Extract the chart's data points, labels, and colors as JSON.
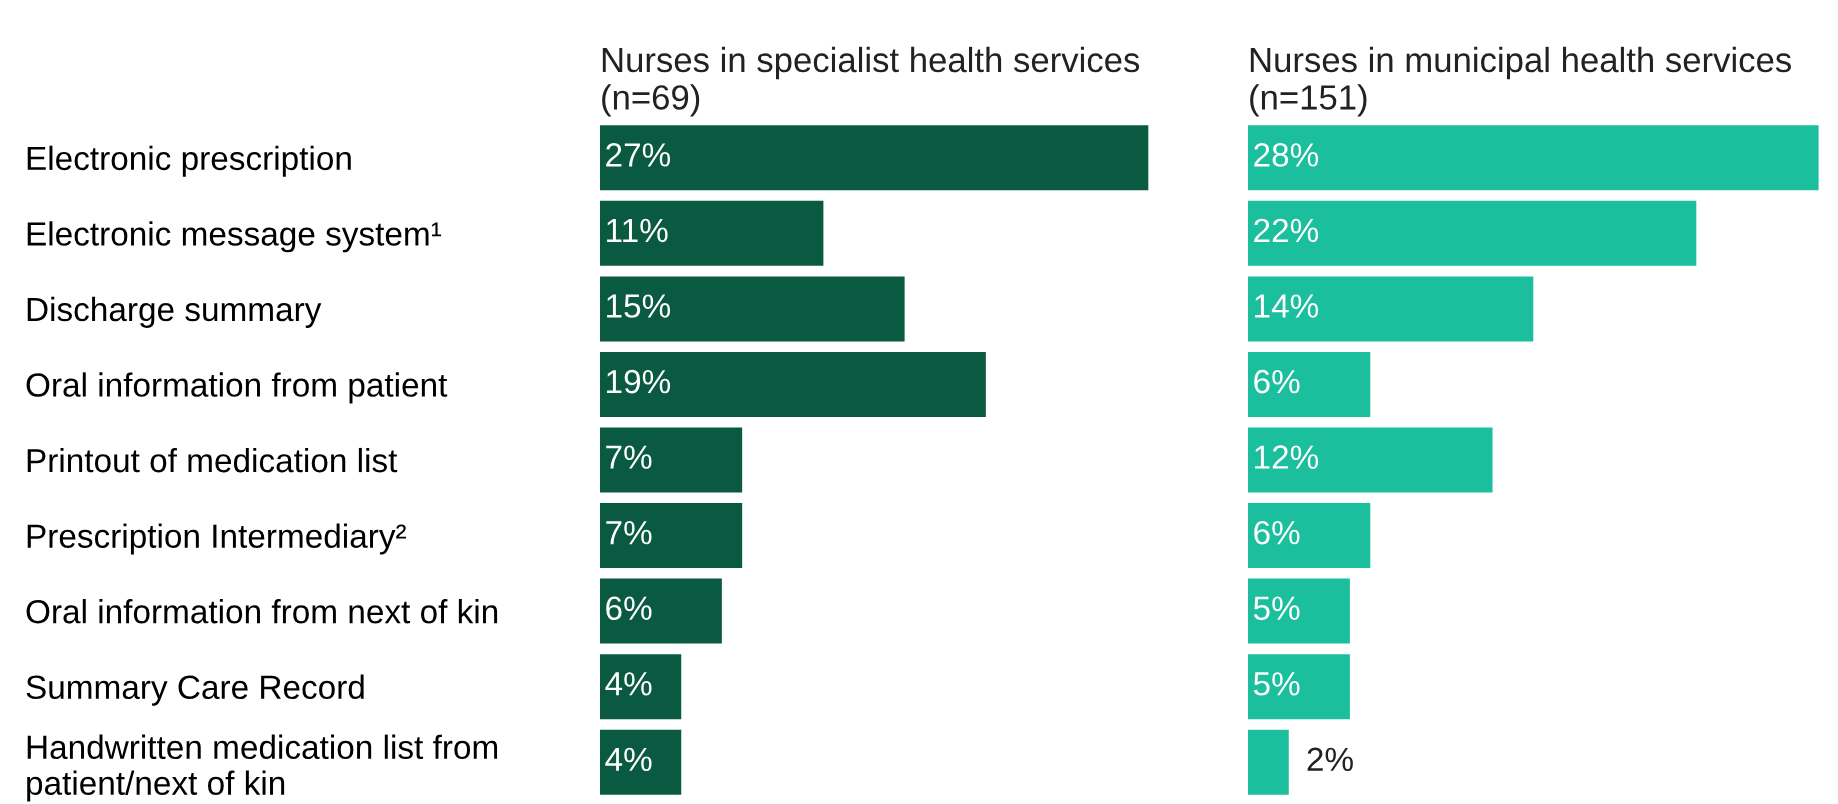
{
  "chart_data": [
    {
      "type": "bar",
      "orientation": "horizontal",
      "title": "Nurses in specialist health services\n(n=69)",
      "categories": [
        "Electronic prescription",
        "Electronic message system¹",
        "Discharge summary",
        "Oral information from patient",
        "Printout of medication list",
        "Prescription Intermediary²",
        "Oral information from next of kin",
        "Summary Care Record",
        "Handwritten medication list from\npatient/next of kin"
      ],
      "values": [
        27,
        11,
        15,
        19,
        7,
        7,
        6,
        4,
        4
      ],
      "value_labels": [
        "27%",
        "11%",
        "15%",
        "19%",
        "7%",
        "7%",
        "6%",
        "4%",
        "4%"
      ],
      "color": "#0a5a42",
      "tick_labels": "y"
    },
    {
      "type": "bar",
      "orientation": "horizontal",
      "title": "Nurses in municipal health services\n(n=151)",
      "categories": [
        null,
        null,
        null,
        null,
        null,
        null,
        null,
        null,
        null
      ],
      "values": [
        28,
        22,
        14,
        6,
        12,
        6,
        5,
        5,
        2
      ],
      "value_labels": [
        "28%",
        "22%",
        "14%",
        "6%",
        "12%",
        "6%",
        "5%",
        "5%",
        "2%"
      ],
      "color": "#1bbf9e"
    }
  ]
}
